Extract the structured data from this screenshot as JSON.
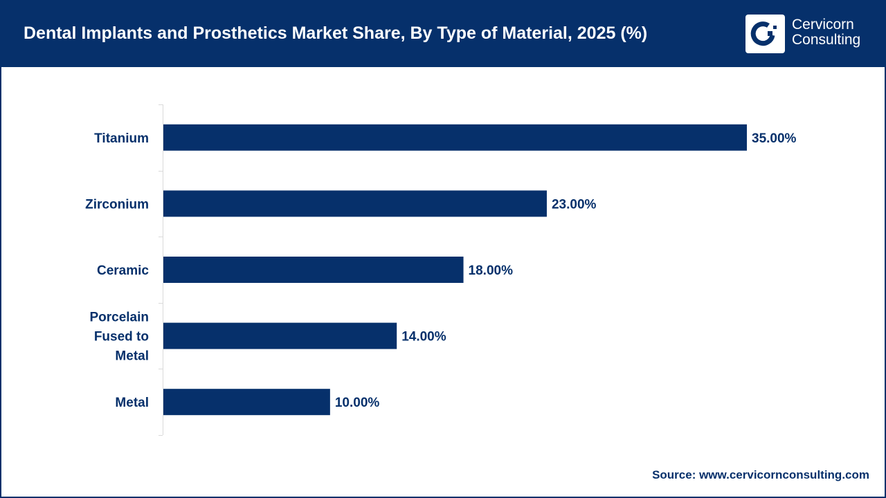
{
  "header": {
    "title": "Dental Implants and Prosthetics Market Share, By Type of Material, 2025 (%)"
  },
  "logo": {
    "text_line1": "Cervicorn",
    "text_line2": "Consulting"
  },
  "source": "Source: www.cervicornconsulting.com",
  "colors": {
    "bar": "#06306b",
    "header": "#06306b",
    "axis": "#d9d9d9"
  },
  "chart_data": {
    "type": "bar",
    "orientation": "horizontal",
    "title": "Dental Implants and Prosthetics Market Share, By Type of Material, 2025 (%)",
    "categories": [
      [
        "Titanium"
      ],
      [
        "Zirconium"
      ],
      [
        "Ceramic"
      ],
      [
        "Porcelain",
        "Fused to",
        "Metal"
      ],
      [
        "Metal"
      ]
    ],
    "values": [
      35,
      23,
      18,
      14,
      10
    ],
    "data_labels": [
      "35.00%",
      "23.00%",
      "18.00%",
      "14.00%",
      "10.00%"
    ],
    "xlim": [
      0,
      35
    ],
    "grid": false,
    "legend": "none"
  }
}
